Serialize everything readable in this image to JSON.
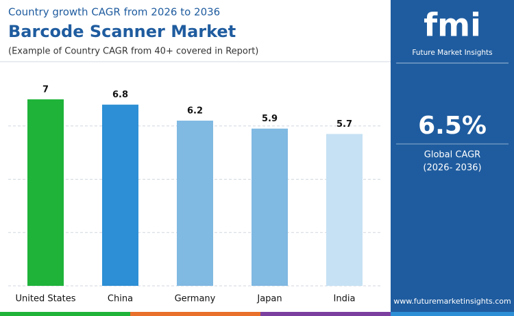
{
  "chart_data": {
    "type": "bar",
    "supertitle": "Country growth CAGR from 2026 to 2036",
    "title": "Barcode Scanner Market",
    "subtitle": "(Example of Country CAGR from 40+ covered in Report)",
    "categories": [
      "United States",
      "China",
      "Germany",
      "Japan",
      "India"
    ],
    "values": [
      7,
      6.8,
      6.2,
      5.9,
      5.7
    ],
    "colors": [
      "#1fb33a",
      "#2d8fd5",
      "#80b9e2",
      "#80b9e2",
      "#c6e1f4"
    ],
    "ylim": [
      0,
      8
    ],
    "yticks": [
      0,
      2,
      4,
      6
    ],
    "grid": true
  },
  "sidebar": {
    "logo": "fmi",
    "brand": "Future Market Insights",
    "metric": "6.5%",
    "metric_label": "Global CAGR",
    "period": "(2026- 2036)",
    "website": "www.futuremarketinsights.com"
  }
}
